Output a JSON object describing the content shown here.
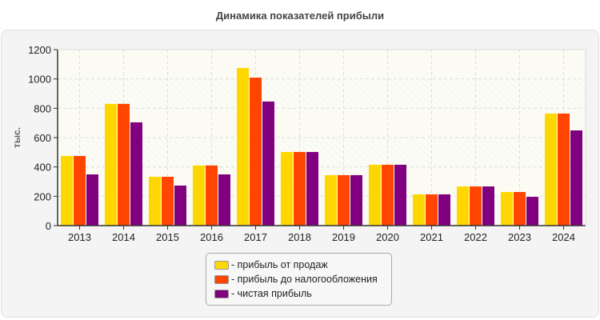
{
  "chart_data": {
    "type": "bar",
    "title": "Динамика показателей прибыли",
    "xlabel": "",
    "ylabel": "тыс.",
    "ylim": [
      0,
      1200
    ],
    "yticks": [
      0,
      200,
      400,
      600,
      800,
      1000,
      1200
    ],
    "grid": true,
    "legend_position": "bottom",
    "categories": [
      "2013",
      "2014",
      "2015",
      "2016",
      "2017",
      "2018",
      "2019",
      "2020",
      "2021",
      "2022",
      "2023",
      "2024"
    ],
    "series": [
      {
        "name": "- прибыль от продаж",
        "color": "#FFD700",
        "values": [
          475,
          830,
          333,
          410,
          1075,
          502,
          344,
          415,
          213,
          267,
          229,
          764
        ]
      },
      {
        "name": "- прибыль до налогообложения",
        "color": "#FF4500",
        "values": [
          475,
          830,
          333,
          410,
          1009,
          502,
          344,
          415,
          213,
          267,
          229,
          764
        ]
      },
      {
        "name": "- чистая прибыль",
        "color": "#800080",
        "values": [
          349,
          704,
          273,
          349,
          846,
          502,
          344,
          415,
          213,
          267,
          196,
          649
        ]
      }
    ]
  }
}
